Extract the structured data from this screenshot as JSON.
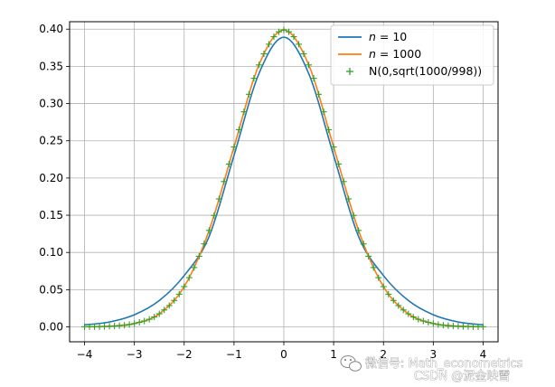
{
  "chart_data": {
    "type": "line",
    "title": "",
    "xlabel": "",
    "ylabel": "",
    "xlim": [
      -4.3,
      4.3
    ],
    "ylim": [
      -0.02,
      0.41
    ],
    "xticks": [
      -4,
      -3,
      -2,
      -1,
      0,
      1,
      2,
      3,
      4
    ],
    "xtick_labels": [
      "−4",
      "−3",
      "−2",
      "−1",
      "0",
      "1",
      "2",
      "3",
      "4"
    ],
    "yticks": [
      0.0,
      0.05,
      0.1,
      0.15,
      0.2,
      0.25,
      0.3,
      0.35,
      0.4
    ],
    "ytick_labels": [
      "0.00",
      "0.05",
      "0.10",
      "0.15",
      "0.20",
      "0.25",
      "0.30",
      "0.35",
      "0.40"
    ],
    "grid": true,
    "legend_position": "top-right",
    "x": [
      -4.0,
      -3.5,
      -3.0,
      -2.5,
      -2.0,
      -1.5,
      -1.0,
      -0.5,
      0.0,
      0.5,
      1.0,
      1.5,
      2.0,
      2.5,
      3.0,
      3.5,
      4.0
    ],
    "series": [
      {
        "name_prefix": "n",
        "name_suffix": " = 10",
        "style": "line",
        "color": "#1f77b4",
        "values": [
          0.0028,
          0.0066,
          0.0163,
          0.0354,
          0.0689,
          0.1215,
          0.2304,
          0.3402,
          0.3891,
          0.3402,
          0.2304,
          0.1215,
          0.0689,
          0.0354,
          0.0163,
          0.0066,
          0.0028
        ]
      },
      {
        "name_prefix": "n",
        "name_suffix": " = 1000",
        "style": "line",
        "color": "#ff7f0e",
        "values": [
          0.0002,
          0.0009,
          0.0045,
          0.0176,
          0.0541,
          0.1296,
          0.2417,
          0.3519,
          0.3988,
          0.3519,
          0.2417,
          0.1296,
          0.0541,
          0.0176,
          0.0045,
          0.0009,
          0.0002
        ]
      },
      {
        "name": "N(0,sqrt(1000/998))",
        "style": "marker",
        "marker": "+",
        "color": "#2ca02c",
        "values": [
          0.0002,
          0.0009,
          0.0045,
          0.0176,
          0.0541,
          0.1296,
          0.2417,
          0.3519,
          0.3988,
          0.3519,
          0.2417,
          0.1296,
          0.0541,
          0.0176,
          0.0045,
          0.0009,
          0.0002
        ]
      }
    ]
  },
  "watermark": {
    "line1": "微信号: Math_econometrics",
    "line2": "CSDN @泥金映雪",
    "icon": "wechat-icon"
  }
}
